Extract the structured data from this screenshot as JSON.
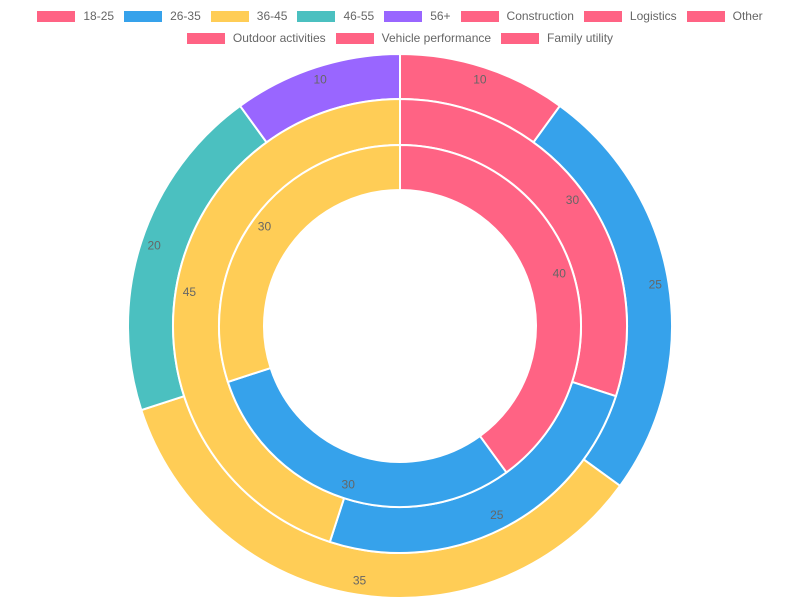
{
  "chart_data": {
    "type": "pie",
    "legend": {
      "position": "top",
      "entries": [
        {
          "label": "18-25",
          "color": "#ff6384"
        },
        {
          "label": "26-35",
          "color": "#36a2eb"
        },
        {
          "label": "36-45",
          "color": "#ffcd56"
        },
        {
          "label": "46-55",
          "color": "#4bc0c0"
        },
        {
          "label": "56+",
          "color": "#9966ff"
        },
        {
          "label": "Construction",
          "color": "#ff6384"
        },
        {
          "label": "Logistics",
          "color": "#ff6384"
        },
        {
          "label": "Other",
          "color": "#ff6384"
        },
        {
          "label": "Outdoor activities",
          "color": "#ff6384"
        },
        {
          "label": "Vehicle performance",
          "color": "#ff6384"
        },
        {
          "label": "Family utility",
          "color": "#ff6384"
        }
      ]
    },
    "rings": [
      {
        "position": "outer",
        "slices": [
          {
            "value": 10,
            "color": "#ff6384"
          },
          {
            "value": 25,
            "color": "#36a2eb"
          },
          {
            "value": 35,
            "color": "#ffcd56"
          },
          {
            "value": 20,
            "color": "#4bc0c0"
          },
          {
            "value": 10,
            "color": "#9966ff"
          }
        ]
      },
      {
        "position": "middle",
        "slices": [
          {
            "value": 30,
            "color": "#ff6384"
          },
          {
            "value": 25,
            "color": "#36a2eb"
          },
          {
            "value": 45,
            "color": "#ffcd56"
          }
        ]
      },
      {
        "position": "inner",
        "slices": [
          {
            "value": 40,
            "color": "#ff6384"
          },
          {
            "value": 30,
            "color": "#36a2eb"
          },
          {
            "value": 30,
            "color": "#ffcd56"
          }
        ]
      }
    ]
  }
}
